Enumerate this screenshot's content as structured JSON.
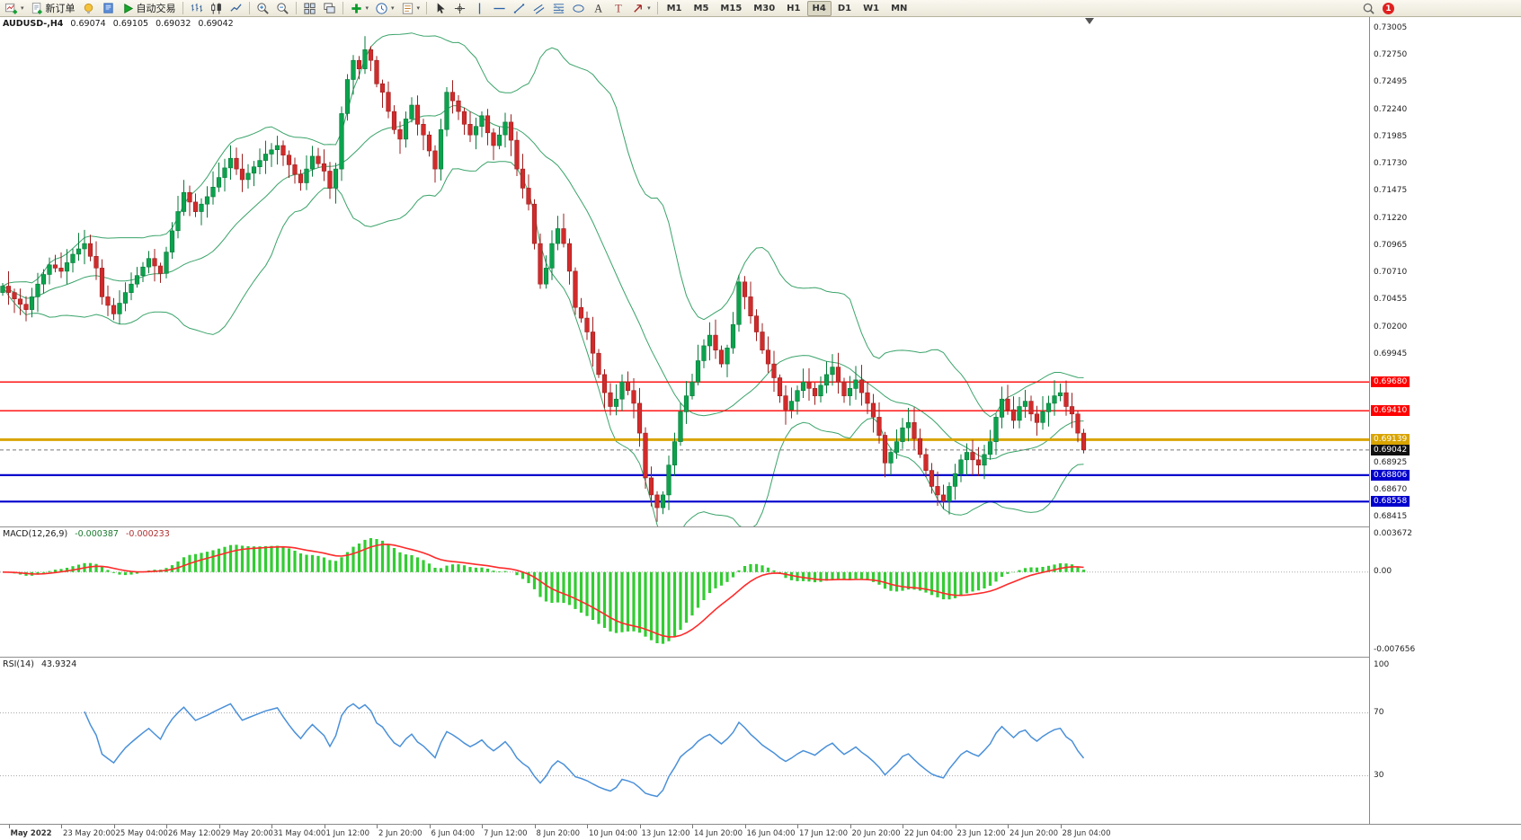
{
  "toolbar": {
    "groups": [
      {
        "items": [
          {
            "name": "new-chart",
            "icon": "newchart",
            "dropdown": true
          },
          {
            "name": "new-order",
            "icon": "orderdoc",
            "label": "新订单"
          },
          {
            "name": "chart-profiles",
            "icon": "bulb"
          },
          {
            "name": "market-watch",
            "icon": "bluebook"
          },
          {
            "name": "autotrading",
            "icon": "play",
            "label": "自动交易"
          }
        ]
      },
      {
        "items": [
          {
            "name": "bar-chart-mode",
            "icon": "bars"
          },
          {
            "name": "candlestick-mode",
            "icon": "candle"
          },
          {
            "name": "line-chart-mode",
            "icon": "line"
          }
        ]
      },
      {
        "items": [
          {
            "name": "zoom-in",
            "icon": "zoomin"
          },
          {
            "name": "zoom-out",
            "icon": "zoomout"
          }
        ]
      },
      {
        "items": [
          {
            "name": "tile-windows",
            "icon": "tile"
          },
          {
            "name": "cascade-windows",
            "icon": "cascade"
          }
        ]
      },
      {
        "items": [
          {
            "name": "indicators",
            "icon": "indplus",
            "dropdown": true
          },
          {
            "name": "periods",
            "icon": "clock",
            "dropdown": true
          },
          {
            "name": "templates",
            "icon": "template",
            "dropdown": true
          }
        ]
      },
      {
        "items": [
          {
            "name": "cursor",
            "icon": "cursor"
          },
          {
            "name": "crosshair",
            "icon": "crosshair"
          },
          {
            "name": "vertical-line",
            "icon": "vline"
          },
          {
            "name": "horizontal-line",
            "icon": "hline"
          },
          {
            "name": "trendline",
            "icon": "trend"
          },
          {
            "name": "equidistant-channel",
            "icon": "channel"
          },
          {
            "name": "fibonacci",
            "icon": "fibo"
          },
          {
            "name": "shapes",
            "icon": "ellipse"
          },
          {
            "name": "text",
            "icon": "texta"
          },
          {
            "name": "text-label",
            "icon": "textt"
          },
          {
            "name": "arrows",
            "icon": "arrows",
            "dropdown": true
          }
        ]
      }
    ],
    "timeframes": [
      {
        "label": "M1"
      },
      {
        "label": "M5"
      },
      {
        "label": "M15"
      },
      {
        "label": "M30"
      },
      {
        "label": "H1"
      },
      {
        "label": "H4",
        "active": true
      },
      {
        "label": "D1"
      },
      {
        "label": "W1"
      },
      {
        "label": "MN"
      }
    ],
    "notification_badge": "1"
  },
  "chart": {
    "title": {
      "symbol": "AUDUSD-,H4",
      "open": "0.69074",
      "high": "0.69105",
      "low": "0.69032",
      "close": "0.69042"
    },
    "price_axis": {
      "ticks": [
        "0.73005",
        "0.72750",
        "0.72495",
        "0.72240",
        "0.71985",
        "0.71730",
        "0.71475",
        "0.71220",
        "0.70965",
        "0.70710",
        "0.70455",
        "0.70200",
        "0.69945",
        "0.68925",
        "0.68670",
        "0.68415"
      ]
    },
    "levels": [
      {
        "price": 0.6968,
        "label": "0.69680",
        "color": "#ff0000",
        "width": 1.3
      },
      {
        "price": 0.6941,
        "label": "0.69410",
        "color": "#ff0000",
        "width": 1.3
      },
      {
        "price": 0.69139,
        "label": "0.69139",
        "color": "#d9a400",
        "width": 3
      },
      {
        "price": 0.69042,
        "label": "0.69042",
        "color": "#111111",
        "line_color": "#777777",
        "width": 1,
        "dash": "4,3"
      },
      {
        "price": 0.68806,
        "label": "0.68806",
        "color": "#0000cc",
        "width": 2.2
      },
      {
        "price": 0.68558,
        "label": "0.68558",
        "color": "#0000cc",
        "width": 2.2
      }
    ]
  },
  "macd_panel": {
    "name": "MACD(12,26,9)",
    "value_main": "-0.000387",
    "value_signal": "-0.000233",
    "scale_max": "0.003672",
    "scale_zero": "0.00",
    "scale_min": "-0.007656"
  },
  "rsi_panel": {
    "name": "RSI(14)",
    "value": "43.9324",
    "scale_labels": [
      {
        "value": 100,
        "text": "100"
      },
      {
        "value": 70,
        "text": "70"
      },
      {
        "value": 30,
        "text": "30"
      }
    ],
    "level_lines": [
      70,
      30
    ]
  },
  "colors": {
    "candle_up": "#0ca24e",
    "candle_up_stroke": "#067a38",
    "candle_down": "#d12b2b",
    "candle_down_stroke": "#9c1f1f",
    "bollinger": "#3aa36a",
    "macd_hist": "#33cc33",
    "macd_signal": "#ff2a2a",
    "rsi_line": "#4a90d9",
    "grid_dotted": "#aaaaaa"
  },
  "chart_data": {
    "type": "candlestick",
    "symbol": "AUDUSD-",
    "timeframe": "H4",
    "y_axis": {
      "min": 0.684,
      "max": 0.7302
    },
    "bollinger": {
      "period": 20,
      "deviation": 2
    },
    "macd": {
      "fast": 12,
      "slow": 26,
      "signal": 9,
      "scale_max": 0.003672,
      "scale_min": -0.007656
    },
    "rsi": {
      "period": 14,
      "scale_max": 100,
      "scale_min": 0
    },
    "closes": [
      0.7058,
      0.7052,
      0.7046,
      0.7041,
      0.7036,
      0.7048,
      0.706,
      0.7069,
      0.7078,
      0.7075,
      0.7072,
      0.708,
      0.7088,
      0.7093,
      0.7098,
      0.7086,
      0.7075,
      0.7048,
      0.704,
      0.7032,
      0.7042,
      0.7052,
      0.706,
      0.7068,
      0.7076,
      0.7084,
      0.7077,
      0.707,
      0.709,
      0.711,
      0.7128,
      0.7146,
      0.7137,
      0.7128,
      0.7135,
      0.7142,
      0.7151,
      0.716,
      0.7169,
      0.7178,
      0.7168,
      0.7158,
      0.7164,
      0.717,
      0.7176,
      0.7182,
      0.7186,
      0.719,
      0.7181,
      0.7172,
      0.7163,
      0.7155,
      0.7168,
      0.718,
      0.7173,
      0.7166,
      0.715,
      0.7168,
      0.722,
      0.7252,
      0.727,
      0.7262,
      0.728,
      0.727,
      0.7248,
      0.724,
      0.7222,
      0.7205,
      0.7196,
      0.7215,
      0.7228,
      0.721,
      0.72,
      0.7185,
      0.7168,
      0.7205,
      0.724,
      0.7232,
      0.7222,
      0.721,
      0.72,
      0.7208,
      0.7218,
      0.7202,
      0.719,
      0.72,
      0.7212,
      0.7195,
      0.7168,
      0.715,
      0.7135,
      0.7098,
      0.706,
      0.7075,
      0.7098,
      0.7112,
      0.7098,
      0.7072,
      0.7038,
      0.7028,
      0.7015,
      0.6995,
      0.6975,
      0.6958,
      0.6945,
      0.6952,
      0.6968,
      0.696,
      0.6948,
      0.692,
      0.6878,
      0.6862,
      0.685,
      0.6862,
      0.689,
      0.6912,
      0.694,
      0.6955,
      0.6968,
      0.6988,
      0.7002,
      0.7012,
      0.6998,
      0.6985,
      0.7,
      0.7022,
      0.7062,
      0.7048,
      0.703,
      0.7015,
      0.6998,
      0.6985,
      0.6972,
      0.6955,
      0.6942,
      0.695,
      0.696,
      0.6968,
      0.6962,
      0.6955,
      0.6965,
      0.6975,
      0.6982,
      0.6968,
      0.6955,
      0.6962,
      0.697,
      0.6958,
      0.6948,
      0.6935,
      0.6918,
      0.6892,
      0.6902,
      0.6912,
      0.6925,
      0.693,
      0.6915,
      0.69,
      0.6885,
      0.687,
      0.6862,
      0.6856,
      0.687,
      0.6882,
      0.6895,
      0.6902,
      0.6895,
      0.689,
      0.69,
      0.6912,
      0.6935,
      0.6952,
      0.6942,
      0.6932,
      0.6945,
      0.695,
      0.6938,
      0.693,
      0.694,
      0.6948,
      0.6955,
      0.6958,
      0.6945,
      0.6938,
      0.692,
      0.69042
    ],
    "time_labels": [
      {
        "t": "May 2022",
        "i": 1
      },
      {
        "t": "23 May 20:00",
        "i": 10
      },
      {
        "t": "25 May 04:00",
        "i": 19
      },
      {
        "t": "26 May 12:00",
        "i": 28
      },
      {
        "t": "29 May 20:00",
        "i": 37
      },
      {
        "t": "31 May 04:00",
        "i": 46
      },
      {
        "t": "1 Jun 12:00",
        "i": 55
      },
      {
        "t": "2 Jun 20:00",
        "i": 64
      },
      {
        "t": "6 Jun 04:00",
        "i": 73
      },
      {
        "t": "7 Jun 12:00",
        "i": 82
      },
      {
        "t": "8 Jun 20:00",
        "i": 91
      },
      {
        "t": "10 Jun 04:00",
        "i": 100
      },
      {
        "t": "13 Jun 12:00",
        "i": 109
      },
      {
        "t": "14 Jun 20:00",
        "i": 118
      },
      {
        "t": "16 Jun 04:00",
        "i": 127
      },
      {
        "t": "17 Jun 12:00",
        "i": 136
      },
      {
        "t": "20 Jun 20:00",
        "i": 145
      },
      {
        "t": "22 Jun 04:00",
        "i": 154
      },
      {
        "t": "23 Jun 12:00",
        "i": 163
      },
      {
        "t": "24 Jun 20:00",
        "i": 172
      },
      {
        "t": "28 Jun 04:00",
        "i": 181
      }
    ]
  }
}
